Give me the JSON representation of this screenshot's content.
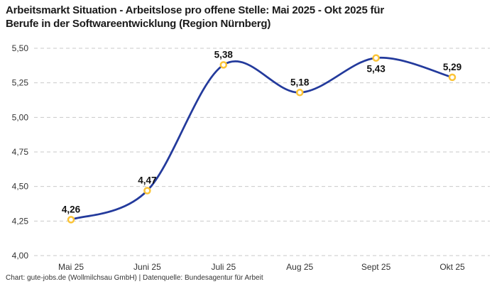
{
  "title": {
    "line1": "Arbeitsmarkt Situation - Arbeitslose pro offene Stelle: Mai 2025 - Okt 2025 für",
    "line2": "Berufe in der Softwareentwicklung (Region Nürnberg)"
  },
  "footer": {
    "text": "Chart: gute-jobs.de (Wollmilchsau GmbH) | Datenquelle: Bundesagentur für Arbeit"
  },
  "chart_data": {
    "type": "line",
    "title": "Arbeitsmarkt Situation - Arbeitslose pro offene Stelle: Mai 2025 - Okt 2025 für Berufe in der Softwareentwicklung (Region Nürnberg)",
    "categories": [
      "Mai 25",
      "Juni 25",
      "Juli 25",
      "Aug 25",
      "Sept 25",
      "Okt 25"
    ],
    "values": [
      4.26,
      4.47,
      5.38,
      5.18,
      5.43,
      5.29
    ],
    "value_labels": [
      "4,26",
      "4,47",
      "5,38",
      "5,18",
      "5,43",
      "5,29"
    ],
    "label_positions": [
      "above",
      "above",
      "above",
      "above",
      "below",
      "above"
    ],
    "xlabel": "",
    "ylabel": "",
    "ylim": [
      4.0,
      5.5
    ],
    "ytick_step": 0.25,
    "ytick_labels": [
      "4,00",
      "4,25",
      "4,50",
      "4,75",
      "5,00",
      "5,25",
      "5,50"
    ],
    "grid": "horizontal-dashed",
    "legend": "none",
    "line_style": "smooth-spline",
    "colors": {
      "line": "#233A9C",
      "marker_stroke": "#FBC437",
      "marker_fill": "#FFFFFF",
      "gridline": "#C9C9C9",
      "title_text": "#1A1A1A",
      "tick_text": "#333333",
      "data_label": "#111111",
      "background": "#FFFFFF"
    }
  }
}
